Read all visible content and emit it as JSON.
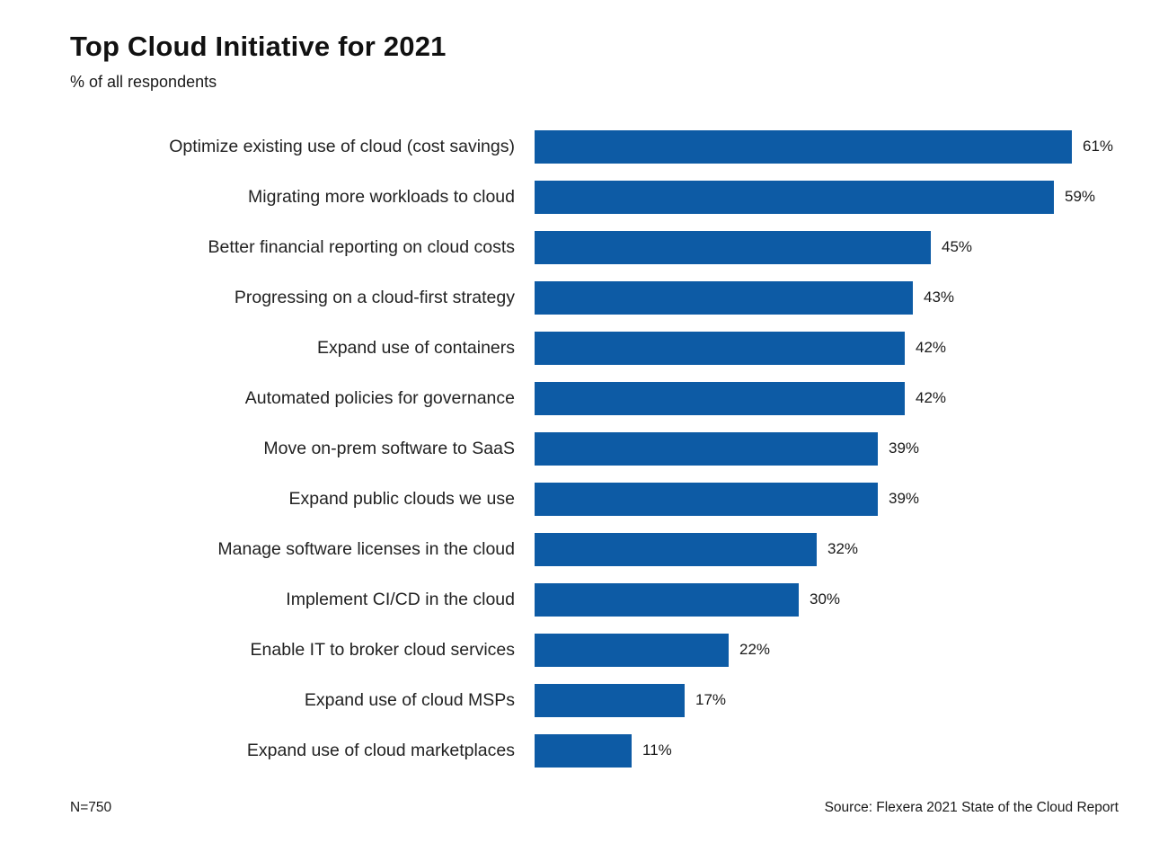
{
  "header": {
    "title": "Top Cloud Initiative for 2021",
    "subtitle": "% of all respondents"
  },
  "footer": {
    "sample_size": "N=750",
    "source": "Source: Flexera 2021 State of the Cloud Report"
  },
  "chart_data": {
    "type": "bar",
    "orientation": "horizontal",
    "title": "Top Cloud Initiative for 2021",
    "subtitle": "% of all respondents",
    "categories": [
      "Optimize existing use of cloud (cost savings)",
      "Migrating more workloads to cloud",
      "Better financial reporting on cloud costs",
      "Progressing on a cloud-first strategy",
      "Expand use of containers",
      "Automated policies for governance",
      "Move on-prem software to SaaS",
      "Expand public clouds we use",
      "Manage software licenses in the cloud",
      "Implement CI/CD in the cloud",
      "Enable IT to broker cloud services",
      "Expand use of cloud MSPs",
      "Expand use of cloud marketplaces"
    ],
    "values": [
      61,
      59,
      45,
      43,
      42,
      42,
      39,
      39,
      32,
      30,
      22,
      17,
      11
    ],
    "value_suffix": "%",
    "bar_color": "#0d5ba5",
    "xlim": [
      0,
      62
    ],
    "grid": false,
    "legend": false,
    "data_labels": "outside-end",
    "sample_size": "N=750",
    "source": "Source: Flexera 2021 State of the Cloud Report"
  }
}
